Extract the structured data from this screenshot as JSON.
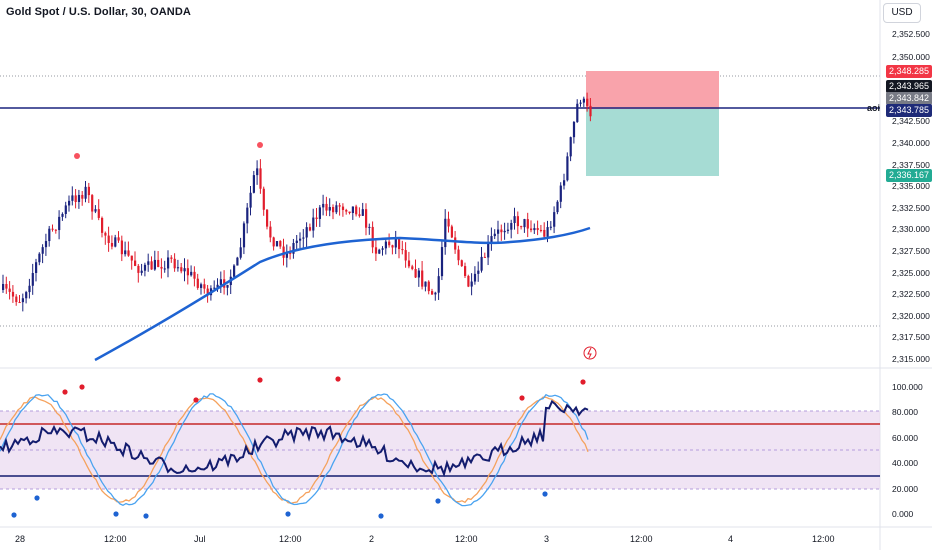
{
  "header": {
    "symbol_title": "Gold Spot / U.S. Dollar, 30, OANDA"
  },
  "currency_button": "USD",
  "aoi_label": "aoi",
  "price_axis": [
    "2,352.500",
    "2,350.000",
    "2,342.500",
    "2,340.000",
    "2,337.500",
    "2,335.000",
    "2,332.500",
    "2,330.000",
    "2,327.500",
    "2,325.000",
    "2,322.500",
    "2,320.000",
    "2,317.500",
    "2,315.000"
  ],
  "osc_axis": [
    "100.000",
    "80.000",
    "60.000",
    "40.000",
    "20.000",
    "0.000"
  ],
  "time_axis": [
    "28",
    "12:00",
    "Jul",
    "12:00",
    "2",
    "12:00",
    "3",
    "12:00",
    "4",
    "12:00"
  ],
  "price_tags": [
    {
      "text": "2,348.285",
      "color": "#f23645"
    },
    {
      "text": "2,343.965",
      "color": "#131722"
    },
    {
      "text": "2,343.842",
      "color": "#787b86"
    },
    {
      "text": "2,343.785",
      "color": "#1e2a78"
    },
    {
      "text": "2,336.167",
      "color": "#22ab94"
    }
  ],
  "colors": {
    "bull": "#1a237e",
    "bear": "#e11d2c",
    "ma": "#1e63d2",
    "stop": "#f9a3ab",
    "target": "#a6dcd4",
    "osc_band": "#ead9ef",
    "osc_line": "#131c6e"
  }
}
